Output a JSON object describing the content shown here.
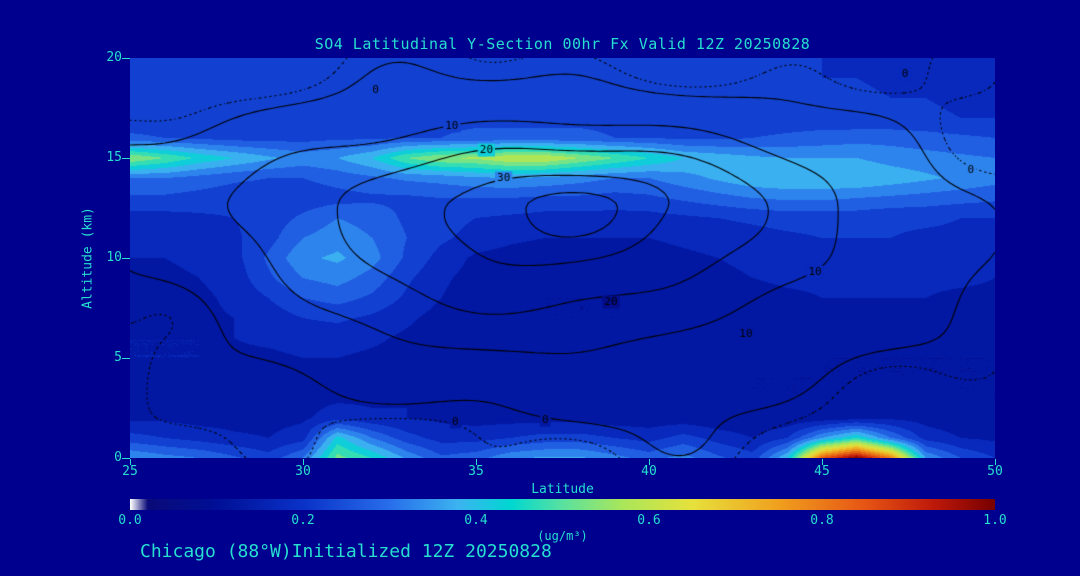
{
  "footer": "Chicago (88°W)Initialized 12Z 20250828",
  "colors": {
    "background": "#00008F",
    "text_turquoise": "#26DFD0",
    "contour_line": "#000000"
  },
  "chart_data": {
    "type": "heatmap",
    "title": "SO4 Latitudinal Y-Section 00hr  Fx Valid 12Z 20250828",
    "xlabel": "Latitude",
    "ylabel": "Altitude (km)",
    "xlim": [
      25,
      50
    ],
    "ylim": [
      0,
      20
    ],
    "x_ticks": [
      25,
      30,
      35,
      40,
      45,
      50
    ],
    "y_ticks": [
      0,
      5,
      10,
      15,
      20
    ],
    "grid": "off",
    "colorbar": {
      "min": 0.0,
      "max": 1.0,
      "ticks": [
        "0.0",
        "0.2",
        "0.4",
        "0.6",
        "0.8",
        "1.0"
      ],
      "label": "(ug/m³)"
    },
    "colormap_stops": [
      [
        0.0,
        "#FFFFFF"
      ],
      [
        0.02,
        "#0A0A78"
      ],
      [
        0.1,
        "#000F96"
      ],
      [
        0.2,
        "#0A32C8"
      ],
      [
        0.3,
        "#286EEB"
      ],
      [
        0.38,
        "#3CB4F0"
      ],
      [
        0.44,
        "#00D7D2"
      ],
      [
        0.5,
        "#5AE1A0"
      ],
      [
        0.57,
        "#AAE65A"
      ],
      [
        0.65,
        "#E6E13C"
      ],
      [
        0.75,
        "#F0A01E"
      ],
      [
        0.85,
        "#E65514"
      ],
      [
        0.93,
        "#BE190A"
      ],
      [
        1.0,
        "#780000"
      ]
    ],
    "lat": [
      25,
      26,
      27,
      28,
      29,
      30,
      31,
      32,
      33,
      34,
      35,
      36,
      37,
      38,
      39,
      40,
      41,
      42,
      43,
      44,
      45,
      46,
      47,
      48,
      49,
      50
    ],
    "alt": [
      20,
      19,
      18,
      17,
      16,
      15,
      14,
      13,
      12,
      11,
      10,
      9,
      8,
      7,
      6,
      5,
      4,
      3,
      2,
      1,
      0
    ],
    "so4_values": [
      [
        0.2,
        0.2,
        0.2,
        0.2,
        0.2,
        0.2,
        0.21,
        0.21,
        0.21,
        0.21,
        0.22,
        0.22,
        0.22,
        0.22,
        0.22,
        0.21,
        0.21,
        0.21,
        0.2,
        0.2,
        0.2,
        0.19,
        0.19,
        0.18,
        0.18,
        0.17
      ],
      [
        0.2,
        0.21,
        0.21,
        0.21,
        0.21,
        0.22,
        0.22,
        0.22,
        0.22,
        0.22,
        0.23,
        0.23,
        0.23,
        0.23,
        0.22,
        0.22,
        0.22,
        0.21,
        0.21,
        0.21,
        0.2,
        0.2,
        0.19,
        0.19,
        0.18,
        0.18
      ],
      [
        0.21,
        0.21,
        0.22,
        0.22,
        0.22,
        0.22,
        0.23,
        0.23,
        0.23,
        0.23,
        0.23,
        0.24,
        0.24,
        0.23,
        0.23,
        0.23,
        0.22,
        0.22,
        0.22,
        0.21,
        0.21,
        0.21,
        0.2,
        0.2,
        0.19,
        0.19
      ],
      [
        0.22,
        0.22,
        0.22,
        0.23,
        0.23,
        0.23,
        0.23,
        0.24,
        0.24,
        0.24,
        0.24,
        0.24,
        0.24,
        0.24,
        0.24,
        0.23,
        0.23,
        0.23,
        0.22,
        0.22,
        0.22,
        0.21,
        0.21,
        0.21,
        0.2,
        0.2
      ],
      [
        0.26,
        0.25,
        0.24,
        0.23,
        0.23,
        0.23,
        0.24,
        0.24,
        0.25,
        0.25,
        0.26,
        0.26,
        0.26,
        0.26,
        0.25,
        0.25,
        0.24,
        0.24,
        0.25,
        0.26,
        0.27,
        0.28,
        0.28,
        0.27,
        0.26,
        0.25
      ],
      [
        0.55,
        0.5,
        0.44,
        0.4,
        0.36,
        0.33,
        0.35,
        0.4,
        0.5,
        0.55,
        0.56,
        0.6,
        0.6,
        0.55,
        0.5,
        0.45,
        0.4,
        0.38,
        0.36,
        0.35,
        0.35,
        0.35,
        0.33,
        0.32,
        0.31,
        0.3
      ],
      [
        0.3,
        0.3,
        0.28,
        0.26,
        0.25,
        0.25,
        0.27,
        0.29,
        0.31,
        0.32,
        0.34,
        0.35,
        0.34,
        0.32,
        0.3,
        0.3,
        0.33,
        0.36,
        0.39,
        0.4,
        0.4,
        0.4,
        0.38,
        0.36,
        0.34,
        0.32
      ],
      [
        0.24,
        0.24,
        0.23,
        0.22,
        0.22,
        0.22,
        0.23,
        0.24,
        0.24,
        0.25,
        0.25,
        0.25,
        0.24,
        0.24,
        0.23,
        0.24,
        0.26,
        0.28,
        0.3,
        0.31,
        0.31,
        0.3,
        0.29,
        0.28,
        0.27,
        0.26
      ],
      [
        0.18,
        0.18,
        0.19,
        0.2,
        0.22,
        0.26,
        0.3,
        0.28,
        0.24,
        0.22,
        0.2,
        0.19,
        0.18,
        0.18,
        0.18,
        0.18,
        0.19,
        0.2,
        0.21,
        0.22,
        0.22,
        0.22,
        0.21,
        0.21,
        0.2,
        0.2
      ],
      [
        0.16,
        0.16,
        0.17,
        0.19,
        0.23,
        0.3,
        0.33,
        0.3,
        0.25,
        0.21,
        0.18,
        0.16,
        0.15,
        0.15,
        0.15,
        0.15,
        0.16,
        0.17,
        0.18,
        0.19,
        0.2,
        0.2,
        0.2,
        0.19,
        0.19,
        0.18
      ],
      [
        0.15,
        0.15,
        0.16,
        0.18,
        0.26,
        0.34,
        0.36,
        0.32,
        0.24,
        0.18,
        0.14,
        0.13,
        0.12,
        0.12,
        0.12,
        0.13,
        0.14,
        0.15,
        0.16,
        0.17,
        0.18,
        0.18,
        0.18,
        0.18,
        0.17,
        0.17
      ],
      [
        0.14,
        0.14,
        0.15,
        0.17,
        0.24,
        0.3,
        0.32,
        0.28,
        0.21,
        0.16,
        0.13,
        0.12,
        0.11,
        0.11,
        0.11,
        0.12,
        0.13,
        0.14,
        0.15,
        0.16,
        0.16,
        0.17,
        0.17,
        0.16,
        0.16,
        0.15
      ],
      [
        0.14,
        0.14,
        0.14,
        0.16,
        0.2,
        0.25,
        0.27,
        0.24,
        0.19,
        0.15,
        0.12,
        0.11,
        0.1,
        0.1,
        0.1,
        0.11,
        0.12,
        0.13,
        0.13,
        0.14,
        0.15,
        0.15,
        0.15,
        0.15,
        0.14,
        0.14
      ],
      [
        0.14,
        0.14,
        0.14,
        0.15,
        0.17,
        0.2,
        0.21,
        0.19,
        0.16,
        0.13,
        0.12,
        0.11,
        0.1,
        0.1,
        0.1,
        0.11,
        0.11,
        0.12,
        0.12,
        0.13,
        0.13,
        0.13,
        0.13,
        0.13,
        0.13,
        0.12
      ],
      [
        0.15,
        0.15,
        0.15,
        0.15,
        0.16,
        0.17,
        0.17,
        0.16,
        0.14,
        0.13,
        0.12,
        0.11,
        0.11,
        0.11,
        0.11,
        0.11,
        0.11,
        0.11,
        0.12,
        0.12,
        0.12,
        0.12,
        0.12,
        0.12,
        0.11,
        0.11
      ],
      [
        0.15,
        0.15,
        0.15,
        0.14,
        0.14,
        0.15,
        0.15,
        0.14,
        0.13,
        0.13,
        0.13,
        0.12,
        0.12,
        0.12,
        0.12,
        0.11,
        0.11,
        0.11,
        0.11,
        0.11,
        0.1,
        0.1,
        0.1,
        0.1,
        0.1,
        0.1
      ],
      [
        0.14,
        0.14,
        0.14,
        0.14,
        0.13,
        0.14,
        0.14,
        0.14,
        0.14,
        0.14,
        0.15,
        0.14,
        0.13,
        0.12,
        0.12,
        0.11,
        0.11,
        0.11,
        0.1,
        0.1,
        0.1,
        0.1,
        0.1,
        0.1,
        0.1,
        0.1
      ],
      [
        0.13,
        0.13,
        0.13,
        0.13,
        0.13,
        0.13,
        0.14,
        0.14,
        0.15,
        0.15,
        0.15,
        0.14,
        0.13,
        0.12,
        0.12,
        0.11,
        0.11,
        0.1,
        0.1,
        0.1,
        0.1,
        0.11,
        0.11,
        0.11,
        0.1,
        0.1
      ],
      [
        0.14,
        0.14,
        0.13,
        0.13,
        0.13,
        0.14,
        0.18,
        0.16,
        0.15,
        0.14,
        0.13,
        0.13,
        0.13,
        0.13,
        0.12,
        0.12,
        0.12,
        0.11,
        0.11,
        0.11,
        0.12,
        0.13,
        0.14,
        0.13,
        0.12,
        0.11
      ],
      [
        0.22,
        0.2,
        0.18,
        0.16,
        0.15,
        0.18,
        0.42,
        0.3,
        0.22,
        0.18,
        0.18,
        0.2,
        0.22,
        0.22,
        0.2,
        0.18,
        0.22,
        0.18,
        0.15,
        0.2,
        0.35,
        0.45,
        0.3,
        0.18,
        0.15,
        0.14
      ],
      [
        0.35,
        0.32,
        0.3,
        0.26,
        0.22,
        0.3,
        0.52,
        0.45,
        0.34,
        0.26,
        0.28,
        0.34,
        0.36,
        0.36,
        0.32,
        0.28,
        0.32,
        0.26,
        0.22,
        0.4,
        0.85,
        1.0,
        0.8,
        0.35,
        0.25,
        0.2
      ]
    ],
    "overlay_contours": {
      "levels": [
        -2,
        0,
        10,
        20,
        30,
        35
      ],
      "dotted_below": 0,
      "gaussian": {
        "amplitude": 40,
        "center_lat": 37,
        "center_alt": 12.5,
        "sigma_lat": 8.5,
        "sigma_alt_up": 4.2,
        "sigma_alt_down": 7.0,
        "offset": -4
      },
      "noise": {
        "a1": 1.2,
        "f1_lat": 1.1,
        "p1": 0.5,
        "f1_alt": 0.8,
        "a2": 1.6,
        "f2_lat": 0.45,
        "p2": 2.0,
        "f2_alt": 0.5,
        "p3": 1.0
      },
      "labels": [
        {
          "text": "0",
          "lat": 32.1,
          "alt": 18.4
        },
        {
          "text": "10",
          "lat": 34.3,
          "alt": 16.6
        },
        {
          "text": "20",
          "lat": 35.3,
          "alt": 15.4
        },
        {
          "text": "30",
          "lat": 35.8,
          "alt": 14.0
        },
        {
          "text": "20",
          "lat": 38.9,
          "alt": 7.8
        },
        {
          "text": "10",
          "lat": 44.8,
          "alt": 9.3
        },
        {
          "text": "10",
          "lat": 42.8,
          "alt": 6.2
        },
        {
          "text": "0",
          "lat": 34.4,
          "alt": 1.8
        },
        {
          "text": "0",
          "lat": 37.0,
          "alt": 1.9
        },
        {
          "text": "0",
          "lat": 49.3,
          "alt": 14.4
        },
        {
          "text": "0",
          "lat": 47.4,
          "alt": 19.2
        }
      ]
    }
  }
}
